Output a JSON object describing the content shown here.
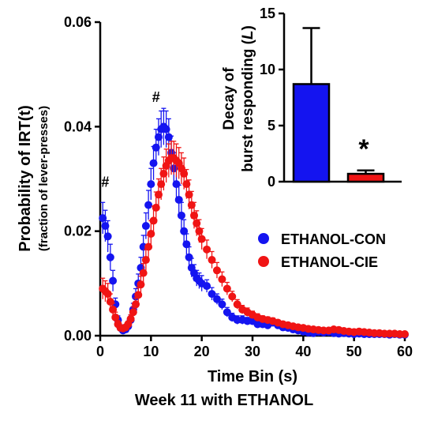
{
  "chart_data": [
    {
      "type": "scatter",
      "xlabel": "Time Bin (s)",
      "ylabel": "Probability of IRT(t)",
      "ylabel_sub": "(fraction of lever-presses)",
      "caption": "Week 11 with ETHANOL",
      "xlim": [
        0,
        60
      ],
      "ylim": [
        0,
        0.06
      ],
      "xticks": [
        0,
        10,
        20,
        30,
        40,
        50,
        60
      ],
      "yticks": [
        "0.00",
        "0.02",
        "0.04",
        "0.06"
      ],
      "grid": false,
      "legend_position": "middle-right",
      "annotations": [
        {
          "text": "#",
          "x": 1,
          "y": 0.0285
        },
        {
          "text": "#",
          "x": 11,
          "y": 0.0447
        }
      ],
      "series": [
        {
          "name": "ETHANOL-CON",
          "color": "#1414f0",
          "x": [
            0.5,
            1,
            1.5,
            2,
            2.5,
            3,
            3.5,
            4,
            4.5,
            5,
            5.5,
            6,
            6.5,
            7,
            7.5,
            8,
            8.5,
            9,
            9.5,
            10,
            10.5,
            11,
            11.5,
            12,
            12.5,
            13,
            13.5,
            14,
            14.5,
            15,
            15.5,
            16,
            16.5,
            17,
            17.5,
            18,
            18.5,
            19,
            19.5,
            20,
            21,
            22,
            23,
            24,
            25,
            26,
            27,
            28,
            29,
            30,
            31,
            32,
            33,
            34,
            35,
            36,
            37,
            38,
            39,
            40,
            41,
            42,
            43,
            44,
            45,
            46,
            47,
            48,
            49,
            50,
            51,
            52,
            53,
            54,
            55,
            56,
            57,
            58,
            59,
            60
          ],
          "y": [
            0.0225,
            0.021,
            0.019,
            0.015,
            0.0105,
            0.006,
            0.003,
            0.0015,
            0.001,
            0.0012,
            0.0018,
            0.003,
            0.005,
            0.0075,
            0.01,
            0.013,
            0.017,
            0.021,
            0.025,
            0.029,
            0.033,
            0.036,
            0.038,
            0.0395,
            0.04,
            0.0395,
            0.038,
            0.035,
            0.032,
            0.029,
            0.026,
            0.023,
            0.02,
            0.0175,
            0.015,
            0.013,
            0.012,
            0.011,
            0.0105,
            0.01,
            0.0095,
            0.008,
            0.007,
            0.006,
            0.0045,
            0.0035,
            0.003,
            0.003,
            0.0028,
            0.0028,
            0.0022,
            0.0022,
            0.002,
            0.0025,
            0.002,
            0.0016,
            0.0015,
            0.0012,
            0.001,
            0.0008,
            0.0006,
            0.0005,
            0.0007,
            0.0006,
            0.0007,
            0.0005,
            0.0004,
            0.0005,
            0.0004,
            0.0003,
            0.0004,
            0.0003,
            0.0003,
            0.0003,
            0.0003,
            0.0003,
            0.0002,
            0.0003,
            0.0002,
            0.0002
          ],
          "err": [
            0.003,
            0.003,
            0.003,
            0.0025,
            0.002,
            0.0012,
            0.0008,
            0.0006,
            0.0005,
            0.0006,
            0.0008,
            0.001,
            0.0012,
            0.0015,
            0.0018,
            0.002,
            0.0022,
            0.0025,
            0.0028,
            0.003,
            0.0032,
            0.0035,
            0.0035,
            0.0035,
            0.0035,
            0.0035,
            0.0035,
            0.0032,
            0.003,
            0.003,
            0.0028,
            0.0025,
            0.0022,
            0.002,
            0.002,
            0.0018,
            0.0016,
            0.0015,
            0.0015,
            0.0015,
            0.0012,
            0.0012,
            0.001,
            0.001,
            0.0009,
            0.0008,
            0.0008,
            0.0008,
            0.0007,
            0.0007,
            0.0006,
            0.0006,
            0.0006,
            0.0006,
            0.0006,
            0.0005,
            0.0005,
            0.0004,
            0.0004,
            0.0003,
            0.0003,
            0.0003,
            0.0003,
            0.0003,
            0.0003,
            0.0002,
            0.0002,
            0.0002,
            0.0002,
            0.0002,
            0.0002,
            0.0002,
            0.0002,
            0.0002,
            0.0002,
            0.0002,
            0.0001,
            0.0002,
            0.0001,
            0.0001
          ]
        },
        {
          "name": "ETHANOL-CIE",
          "color": "#f01414",
          "x": [
            0.5,
            1,
            1.5,
            2,
            2.5,
            3,
            3.5,
            4,
            4.5,
            5,
            5.5,
            6,
            6.5,
            7,
            7.5,
            8,
            8.5,
            9,
            9.5,
            10,
            10.5,
            11,
            11.5,
            12,
            12.5,
            13,
            13.5,
            14,
            14.5,
            15,
            15.5,
            16,
            16.5,
            17,
            17.5,
            18,
            18.5,
            19,
            19.5,
            20,
            21,
            22,
            23,
            24,
            25,
            26,
            27,
            28,
            29,
            30,
            31,
            32,
            33,
            34,
            35,
            36,
            37,
            38,
            39,
            40,
            41,
            42,
            43,
            44,
            45,
            46,
            47,
            48,
            49,
            50,
            51,
            52,
            53,
            54,
            55,
            56,
            57,
            58,
            59,
            60
          ],
          "y": [
            0.009,
            0.0085,
            0.008,
            0.0065,
            0.005,
            0.0035,
            0.0022,
            0.0015,
            0.0014,
            0.0016,
            0.0022,
            0.0032,
            0.0045,
            0.006,
            0.0078,
            0.0098,
            0.012,
            0.0145,
            0.017,
            0.0195,
            0.022,
            0.0245,
            0.027,
            0.029,
            0.031,
            0.0325,
            0.0335,
            0.034,
            0.034,
            0.0335,
            0.033,
            0.032,
            0.031,
            0.029,
            0.027,
            0.025,
            0.023,
            0.0215,
            0.02,
            0.0185,
            0.0165,
            0.0145,
            0.0125,
            0.0108,
            0.009,
            0.0075,
            0.006,
            0.005,
            0.0045,
            0.004,
            0.0035,
            0.0032,
            0.003,
            0.0028,
            0.0025,
            0.0022,
            0.002,
            0.0018,
            0.0016,
            0.0015,
            0.0013,
            0.0012,
            0.0011,
            0.001,
            0.001,
            0.0012,
            0.0011,
            0.0009,
            0.0008,
            0.0007,
            0.0008,
            0.0007,
            0.0006,
            0.0005,
            0.0005,
            0.0004,
            0.0004,
            0.0004,
            0.0003,
            0.0003
          ],
          "err": [
            0.002,
            0.002,
            0.002,
            0.0015,
            0.0012,
            0.001,
            0.0007,
            0.0005,
            0.0005,
            0.0005,
            0.0006,
            0.0008,
            0.001,
            0.0012,
            0.0014,
            0.0016,
            0.0018,
            0.002,
            0.0022,
            0.0025,
            0.0028,
            0.003,
            0.003,
            0.003,
            0.0032,
            0.0032,
            0.0032,
            0.0032,
            0.0032,
            0.0032,
            0.003,
            0.003,
            0.003,
            0.0028,
            0.0028,
            0.0026,
            0.0025,
            0.0024,
            0.0022,
            0.002,
            0.0018,
            0.0016,
            0.0015,
            0.0014,
            0.0012,
            0.001,
            0.0009,
            0.0008,
            0.0008,
            0.0007,
            0.0007,
            0.0006,
            0.0006,
            0.0006,
            0.0005,
            0.0005,
            0.0005,
            0.0004,
            0.0004,
            0.0004,
            0.0004,
            0.0003,
            0.0003,
            0.0003,
            0.0003,
            0.0003,
            0.0003,
            0.0003,
            0.0003,
            0.0002,
            0.0002,
            0.0002,
            0.0002,
            0.0002,
            0.0002,
            0.0002,
            0.0002,
            0.0002,
            0.0001,
            0.0001
          ]
        }
      ]
    },
    {
      "type": "bar",
      "ylabel_line1": "Decay of",
      "ylabel_line2": "burst responding (",
      "ylabel_italic": "L",
      "ylabel_close": ")",
      "ylim": [
        0,
        15
      ],
      "yticks": [
        "0",
        "5",
        "10",
        "15"
      ],
      "categories": [
        "ETHANOL-CON",
        "ETHANOL-CIE"
      ],
      "values": [
        8.7,
        0.7
      ],
      "errors": [
        5.0,
        0.3
      ],
      "colors": [
        "#1414f0",
        "#f01414"
      ],
      "significance": "*"
    }
  ]
}
